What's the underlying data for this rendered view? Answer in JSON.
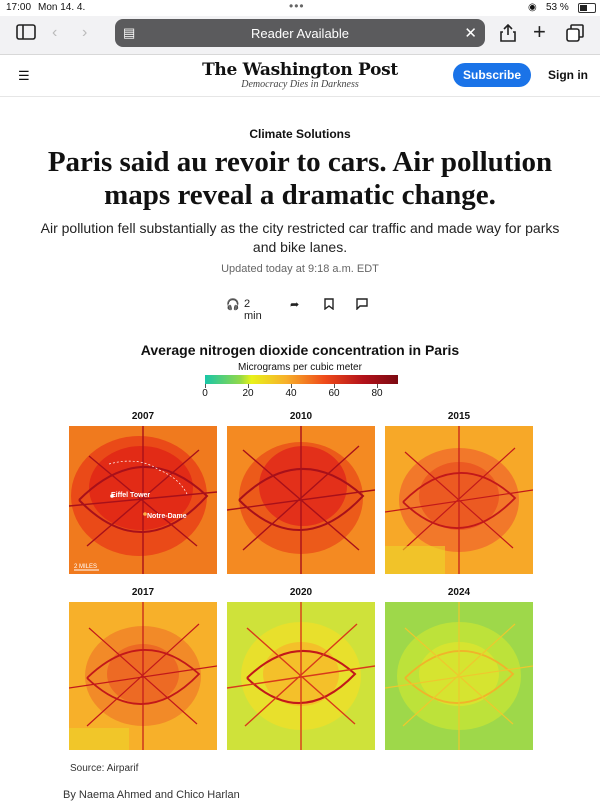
{
  "status": {
    "time": "17:00",
    "date": "Mon 14. 4.",
    "battery": "53 %",
    "battery_level": 0.53
  },
  "browser": {
    "reader_label": "Reader Available"
  },
  "site": {
    "masthead": "The Washington Post",
    "tagline": "Democracy Dies in Darkness",
    "subscribe": "Subscribe",
    "signin": "Sign in"
  },
  "article": {
    "kicker": "Climate Solutions",
    "headline": "Paris said au revoir to cars. Air pollution maps reveal a dramatic change.",
    "dek": "Air pollution fell substantially as the city restricted car traffic and made way for parks and bike lanes.",
    "updated": "Updated today at 9:18 a.m. EDT",
    "listen": "2 min",
    "source": "Source: Airparif",
    "byline": "By Naema Ahmed and Chico Harlan"
  },
  "figure": {
    "title": "Average nitrogen dioxide concentration in Paris",
    "legend_title": "Micrograms per cubic meter",
    "legend_ticks": [
      "0",
      "20",
      "40",
      "60",
      "80"
    ],
    "scale_label": "2 MILES",
    "landmarks": [
      "Eiffel Tower",
      "Notre-Dame"
    ],
    "years": [
      "2007",
      "2010",
      "2015",
      "2017",
      "2020",
      "2024"
    ]
  }
}
